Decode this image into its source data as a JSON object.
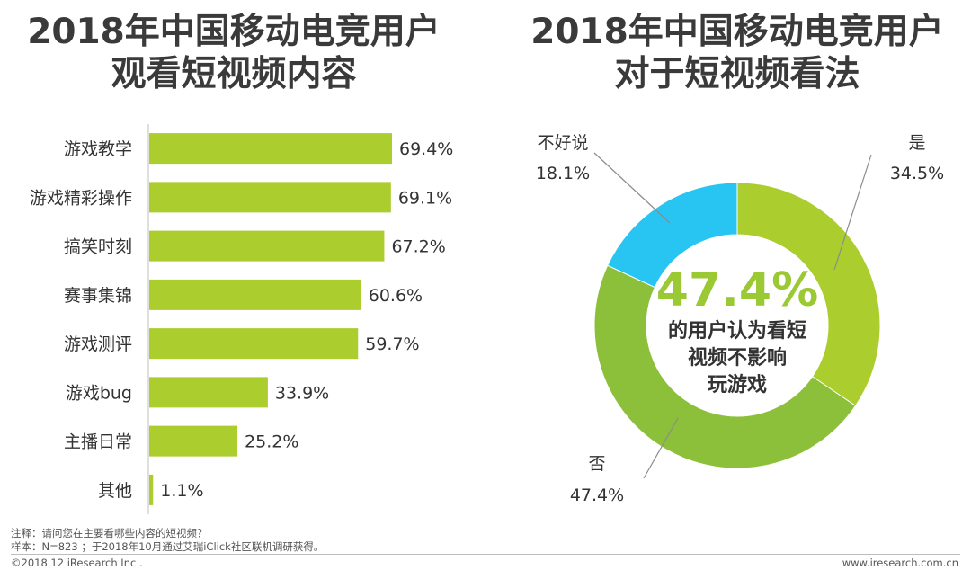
{
  "titles": {
    "left": [
      "2018年中国移动电竞用户",
      "观看短视频内容"
    ],
    "right": [
      "2018年中国移动电竞用户",
      "对于短视频看法"
    ]
  },
  "colors": {
    "bar": "#abcd2e",
    "donut_green": "#abcd2e",
    "donut_darkgreen": "#8cbf3a",
    "donut_blue": "#29c5f2",
    "center_text": "#9ac934"
  },
  "chart_data": [
    {
      "type": "bar",
      "orientation": "horizontal",
      "title": "2018年中国移动电竞用户观看短视频内容",
      "categories": [
        "游戏教学",
        "游戏精彩操作",
        "搞笑时刻",
        "赛事集锦",
        "游戏测评",
        "游戏bug",
        "主播日常",
        "其他"
      ],
      "values": [
        69.4,
        69.1,
        67.2,
        60.6,
        59.7,
        33.9,
        25.2,
        1.1
      ],
      "labels": [
        "69.4%",
        "69.1%",
        "67.2%",
        "60.6%",
        "59.7%",
        "33.9%",
        "25.2%",
        "1.1%"
      ],
      "xlim": [
        0,
        100
      ]
    },
    {
      "type": "pie",
      "style": "donut",
      "title": "2018年中国移动电竞用户对于短视频看法",
      "slices": [
        {
          "label": "是",
          "value": 34.5,
          "value_label": "34.5%"
        },
        {
          "label": "否",
          "value": 47.4,
          "value_label": "47.4%"
        },
        {
          "label": "不好说",
          "value": 18.1,
          "value_label": "18.1%"
        }
      ],
      "center": {
        "value": "47.4%",
        "lines": [
          "的用户认为看短",
          "视频不影响",
          "玩游戏"
        ]
      }
    }
  ],
  "footer": {
    "note": "注释：请问您在主要看哪些内容的短视频？",
    "sample": "样本：N=823 ；于2018年10月通过艾瑞iClick社区联机调研获得。",
    "copyright": "©2018.12 iResearch Inc .",
    "website": "www.iresearch.com.cn"
  }
}
